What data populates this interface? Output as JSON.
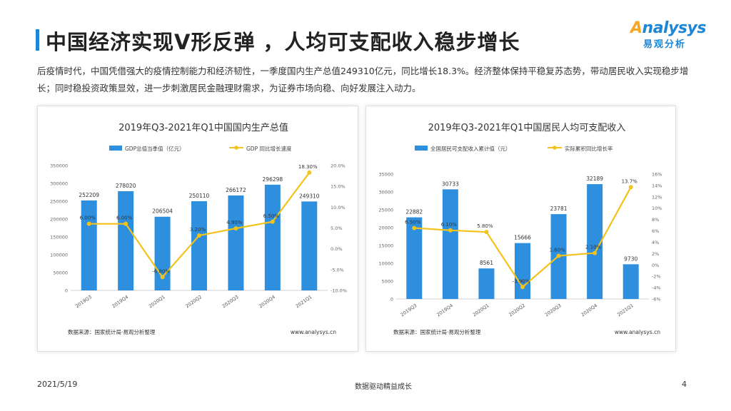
{
  "header": {
    "title": "中国经济实现V形反弹 ，人均可支配收入稳步增长",
    "logo_en_a": "A",
    "logo_en_rest": "nalysys",
    "logo_cn": "易观分析"
  },
  "intro": "后疫情时代，中国凭借强大的疫情控制能力和经济韧性，一季度国内生产总值249310亿元，同比增长18.3%。经济整体保持平稳复苏态势，带动居民收入实现稳步增长；同时稳投资政策显效，进一步刺激居民金融理财需求，为证券市场向稳、向好发展注入动力。",
  "colors": {
    "bar": "#2d8fde",
    "line": "#f3c21b",
    "accent": "#1f86d6",
    "logo_orange": "#f6a623"
  },
  "chart_data": [
    {
      "type": "bar",
      "title": "2019年Q3-2021年Q1中国国内生产总值",
      "categories": [
        "2019Q3",
        "2019Q4",
        "2020Q1",
        "2020Q2",
        "2020Q3",
        "2020Q4",
        "2021Q1"
      ],
      "series": [
        {
          "name": "GDP总值当季值（亿元）",
          "kind": "bar",
          "axis": "left",
          "values": [
            252209,
            278020,
            206504,
            250110,
            266172,
            296298,
            249310
          ],
          "labels": [
            "252209",
            "278020",
            "206504",
            "250110",
            "266172",
            "296298",
            "249310"
          ]
        },
        {
          "name": "GDP 同比增长速度",
          "kind": "line",
          "axis": "right",
          "values": [
            6.0,
            6.0,
            -6.8,
            3.2,
            4.9,
            6.5,
            18.3
          ],
          "labels": [
            "6.00%",
            "6.00%",
            "-6.80%",
            "3.20%",
            "4.90%",
            "6.50%",
            "18.30%"
          ]
        }
      ],
      "ylim_left": [
        0,
        350000
      ],
      "yticks_left": [
        "0",
        "50000",
        "100000",
        "150000",
        "200000",
        "250000",
        "300000",
        "350000"
      ],
      "ylim_right": [
        -10,
        20
      ],
      "yticks_right": [
        "-10.0%",
        "-5.0%",
        "0.0%",
        "5.0%",
        "10.0%",
        "15.0%",
        "20.0%"
      ],
      "source": "数据来源：国家统计局·易观分析整理",
      "website": "www.analysys.cn"
    },
    {
      "type": "bar",
      "title": "2019年Q3-2021年Q1中国居民人均可支配收入",
      "categories": [
        "2019Q3",
        "2019Q4",
        "2020Q1",
        "2020Q2",
        "2020Q3",
        "2020Q4",
        "2021Q1"
      ],
      "series": [
        {
          "name": "全国居民可支配收入累计值（元）",
          "kind": "bar",
          "axis": "left",
          "values": [
            22882,
            30733,
            8561,
            15666,
            23781,
            32189,
            9730
          ],
          "labels": [
            "22882",
            "30733",
            "8561",
            "15666",
            "23781",
            "32189",
            "9730"
          ]
        },
        {
          "name": "实际累积同比增长率",
          "kind": "line",
          "axis": "right",
          "values": [
            6.5,
            6.1,
            5.8,
            -3.9,
            1.6,
            2.1,
            13.7
          ],
          "labels": [
            "6.50%",
            "6.10%",
            "5.80%",
            "-3.90%",
            "1.60%",
            "2.10%",
            "13.7%"
          ]
        }
      ],
      "ylim_left": [
        0,
        35000
      ],
      "yticks_left": [
        "0",
        "5000",
        "10000",
        "15000",
        "20000",
        "25000",
        "30000",
        "35000"
      ],
      "ylim_right": [
        -6,
        16
      ],
      "yticks_right": [
        "-6%",
        "-4%",
        "-2%",
        "0%",
        "2%",
        "4%",
        "6%",
        "8%",
        "10%",
        "12%",
        "14%",
        "16%"
      ],
      "source": "数据来源：国家统计局·易观分析整理",
      "website": "www.analysys.cn"
    }
  ],
  "footer": {
    "date": "2021/5/19",
    "center": "数据驱动精益成长",
    "page": "4"
  }
}
